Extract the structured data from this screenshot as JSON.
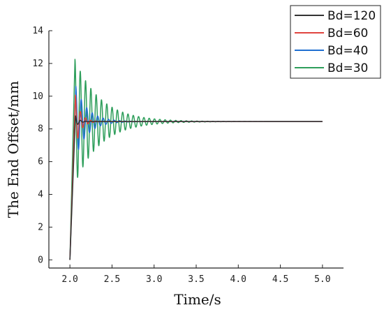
{
  "chart_data": {
    "type": "line",
    "xlabel": "Time/s",
    "ylabel": "The End Offset/mm",
    "xlim": [
      1.75,
      5.25
    ],
    "ylim": [
      -0.5,
      14
    ],
    "x_ticks": [
      "2.0",
      "2.5",
      "3.0",
      "3.5",
      "4.0",
      "4.5",
      "5.0"
    ],
    "y_ticks": [
      "0",
      "2",
      "4",
      "6",
      "8",
      "10",
      "12",
      "14"
    ],
    "grid": false,
    "legend_position": "top-right",
    "steady_state": 8.45,
    "x_start": 2.0,
    "x_end": 5.0,
    "series": [
      {
        "name": "Bd=30",
        "color": "#2e9e5b",
        "peak_time": 2.06,
        "peak": 12.25,
        "decay_time": 0.3,
        "period": 0.063
      },
      {
        "name": "Bd=40",
        "color": "#1f6fd1",
        "peak_time": 2.07,
        "peak": 10.6,
        "decay_time": 0.14,
        "period": 0.065
      },
      {
        "name": "Bd=60",
        "color": "#e0443e",
        "peak_time": 2.065,
        "peak": 10.1,
        "decay_time": 0.06,
        "period": 0.06
      },
      {
        "name": "Bd=120",
        "color": "#333333",
        "peak_time": 2.065,
        "peak": 8.8,
        "decay_time": 0.04,
        "period": 0.06
      }
    ],
    "legend_order": [
      "Bd=120",
      "Bd=60",
      "Bd=40",
      "Bd=30"
    ]
  }
}
